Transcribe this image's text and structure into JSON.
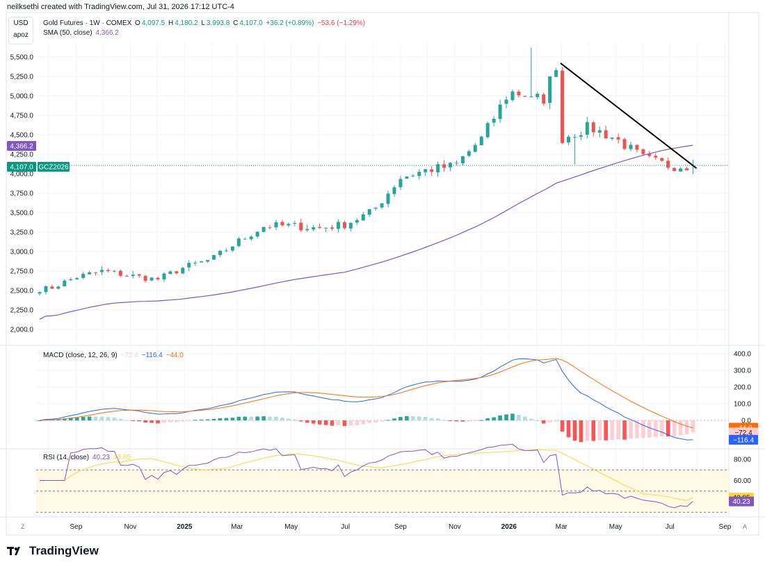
{
  "header": {
    "attribution": "neilksethi created with TradingView.com, Jul 31, 2026 17:12 UTC-4"
  },
  "currency": {
    "code": "USD",
    "sub": "apoz"
  },
  "legend_main": {
    "name": "Gold Futures · 1W · COMEX",
    "o_label": "O",
    "o": "4,097.5",
    "h_label": "H",
    "h": "4,180.2",
    "l_label": "L",
    "l": "3,993.8",
    "c_label": "C",
    "c": "4,107.0",
    "change": "+36.2 (+0.89%)",
    "change2": "−53.6 (−1.29%)",
    "sma_label": "SMA (50, close)",
    "sma_value": "4,366.2"
  },
  "legend_macd": {
    "label": "MACD (close, 12, 26, 9)",
    "hist": "−72.4",
    "macd": "−116.4",
    "signal": "−44.0"
  },
  "legend_rsi": {
    "label": "RSI (14, close)",
    "rsi": "40.23",
    "ma": "43.85"
  },
  "price_badges": {
    "sma": "4,366.2",
    "last": "4,107.0",
    "ticker": "GCZ2026"
  },
  "macd_badges": [
    "−44.0",
    "−72.4",
    "−116.4"
  ],
  "rsi_badges": [
    "43.85",
    "40.23"
  ],
  "corner_left": "Z",
  "corner_right": "A",
  "brand": "TradingView",
  "colors": {
    "up": "#26a69a",
    "down": "#ef5350",
    "sma": "#7e57c2",
    "macd": "#2962ff",
    "signal": "#ff6d00",
    "rsi": "#7e57c2",
    "rsi_ma": "#fdd835",
    "hist_up": "#26a69a",
    "hist_up_light": "#b2dfdb",
    "hist_down": "#ff5252",
    "hist_down_light": "#ffcdd2",
    "trendline": "#000000",
    "last_price": "#089981"
  },
  "chart_data": {
    "type": "candlestick",
    "title": "Gold Futures · 1W · COMEX",
    "x_tick_labels": [
      "Sep",
      "Nov",
      "2025",
      "Mar",
      "May",
      "Jul",
      "Sep",
      "Nov",
      "2026",
      "Mar",
      "May",
      "Jul",
      "Sep"
    ],
    "y_ticks": [
      2000,
      2250,
      2500,
      2750,
      3000,
      3250,
      3500,
      3750,
      4000,
      4250,
      4500,
      4750,
      5000,
      5250,
      5500
    ],
    "ylim": [
      1900,
      5650
    ],
    "anchors": {
      "months": [
        "2024-08",
        "2024-09",
        "2024-10",
        "2024-11",
        "2024-12",
        "2025-01",
        "2025-02",
        "2025-03",
        "2025-04",
        "2025-05",
        "2025-06",
        "2025-07",
        "2025-08",
        "2025-09",
        "2025-10",
        "2025-11",
        "2025-12",
        "2026-01",
        "2026-02",
        "2026-03",
        "2026-04",
        "2026-05",
        "2026-06",
        "2026-07",
        "2026-08"
      ],
      "close": [
        2520,
        2670,
        2750,
        2690,
        2640,
        2800,
        2900,
        3120,
        3330,
        3330,
        3300,
        3350,
        3520,
        3950,
        4050,
        4100,
        4450,
        5050,
        5000,
        4450,
        4600,
        4450,
        4200,
        4100,
        4100
      ]
    },
    "last": {
      "open": 4097.5,
      "high": 4180.2,
      "low": 3993.8,
      "close": 4107.0
    },
    "sma": {
      "name": "SMA (50, close)",
      "last": 4366.2
    },
    "macd": {
      "name": "MACD (close, 12, 26, 9)",
      "macd": -116.4,
      "signal": -44.0,
      "histogram": -72.4,
      "y_ticks": [
        0,
        100,
        200,
        300,
        400
      ]
    },
    "rsi": {
      "name": "RSI (14, close)",
      "rsi": 40.23,
      "ma": 43.85,
      "y_ticks": [
        60,
        80
      ]
    },
    "trendline": [
      [
        "2026-02-28",
        5420
      ],
      [
        "2026-07-31",
        4070
      ]
    ]
  }
}
